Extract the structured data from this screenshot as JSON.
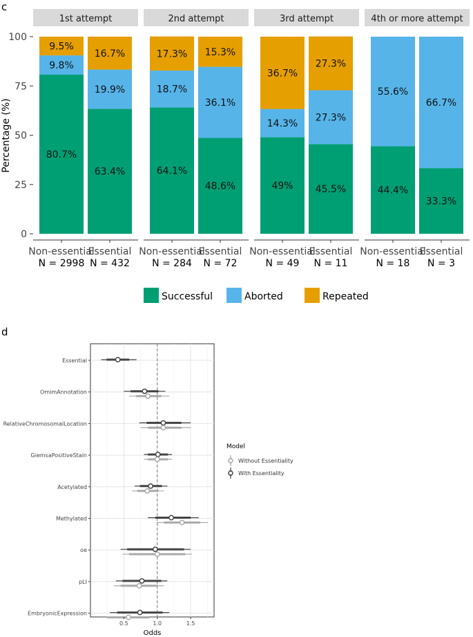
{
  "chart_data": [
    {
      "panel": "c",
      "type": "bar",
      "stacked": true,
      "ylabel": "Percentage (%)",
      "yticks": [
        0,
        25,
        50,
        75,
        100
      ],
      "ylim": [
        0,
        100
      ],
      "facets": [
        {
          "title": "1st attempt",
          "bars": [
            {
              "name": "Non-essential",
              "n": "N = 2998",
              "successful": 80.7,
              "aborted": 9.8,
              "repeated": 9.5,
              "labels": [
                "80.7%",
                "9.8%",
                "9.5%"
              ]
            },
            {
              "name": "Essential",
              "n": "N = 432",
              "successful": 63.4,
              "aborted": 19.9,
              "repeated": 16.7,
              "labels": [
                "63.4%",
                "19.9%",
                "16.7%"
              ]
            }
          ]
        },
        {
          "title": "2nd attempt",
          "bars": [
            {
              "name": "Non-essential",
              "n": "N = 284",
              "successful": 64.1,
              "aborted": 18.7,
              "repeated": 17.3,
              "labels": [
                "64.1%",
                "18.7%",
                "17.3%"
              ]
            },
            {
              "name": "Essential",
              "n": "N = 72",
              "successful": 48.6,
              "aborted": 36.1,
              "repeated": 15.3,
              "labels": [
                "48.6%",
                "36.1%",
                "15.3%"
              ]
            }
          ]
        },
        {
          "title": "3rd attempt",
          "bars": [
            {
              "name": "Non-essential",
              "n": "N = 49",
              "successful": 49,
              "aborted": 14.3,
              "repeated": 36.7,
              "labels": [
                "49%",
                "14.3%",
                "36.7%"
              ]
            },
            {
              "name": "Essential",
              "n": "N = 11",
              "successful": 45.5,
              "aborted": 27.3,
              "repeated": 27.3,
              "labels": [
                "45.5%",
                "27.3%",
                "27.3%"
              ]
            }
          ]
        },
        {
          "title": "4th or more attempt",
          "bars": [
            {
              "name": "Non-essential",
              "n": "N = 18",
              "successful": 44.4,
              "aborted": 55.6,
              "repeated": 0,
              "labels": [
                "44.4%",
                "55.6%",
                ""
              ]
            },
            {
              "name": "Essential",
              "n": "N = 3",
              "successful": 33.3,
              "aborted": 66.7,
              "repeated": 0,
              "labels": [
                "33.3%",
                "66.7%",
                ""
              ]
            }
          ]
        }
      ],
      "legend": [
        {
          "label": "Successful",
          "color": "#009E73"
        },
        {
          "label": "Aborted",
          "color": "#56B4E9"
        },
        {
          "label": "Repeated",
          "color": "#E69F00"
        }
      ]
    },
    {
      "panel": "d",
      "type": "scatter",
      "subtype": "forest",
      "xlabel": "Odds",
      "xticks": [
        0.5,
        1.0,
        1.5
      ],
      "xtick_labels": [
        "0.5",
        "1.0",
        "1.5"
      ],
      "xlim": [
        0.0,
        1.85
      ],
      "reference_line": 1.0,
      "legend_title": "Model",
      "models": [
        {
          "label": "Without Essentiality",
          "color": "#AAAAAA"
        },
        {
          "label": "With Essentiality",
          "color": "#444444"
        }
      ],
      "variables": [
        {
          "name": "Essential",
          "with": {
            "est": 0.41,
            "lo95": 0.16,
            "hi95": 0.69,
            "lo80": 0.24,
            "hi80": 0.58
          },
          "without": null
        },
        {
          "name": "OmimAnnotation",
          "with": {
            "est": 0.81,
            "lo95": 0.5,
            "hi95": 1.12,
            "lo80": 0.6,
            "hi80": 1.02
          },
          "without": {
            "est": 0.86,
            "lo95": 0.58,
            "hi95": 1.18,
            "lo80": 0.68,
            "hi80": 1.06
          }
        },
        {
          "name": "RelativeChromosomalLocation",
          "with": {
            "est": 1.09,
            "lo95": 0.73,
            "hi95": 1.5,
            "lo80": 0.84,
            "hi80": 1.36
          },
          "without": {
            "est": 1.09,
            "lo95": 0.75,
            "hi95": 1.5,
            "lo80": 0.86,
            "hi80": 1.36
          }
        },
        {
          "name": "GiemsaPositiveStain",
          "with": {
            "est": 1.01,
            "lo95": 0.8,
            "hi95": 1.22,
            "lo80": 0.86,
            "hi80": 1.16
          },
          "without": {
            "est": 1.0,
            "lo95": 0.8,
            "hi95": 1.22,
            "lo80": 0.86,
            "hi80": 1.16
          }
        },
        {
          "name": "Acetylated",
          "with": {
            "est": 0.9,
            "lo95": 0.66,
            "hi95": 1.15,
            "lo80": 0.74,
            "hi80": 1.07
          },
          "without": {
            "est": 0.85,
            "lo95": 0.62,
            "hi95": 1.1,
            "lo80": 0.7,
            "hi80": 1.02
          }
        },
        {
          "name": "Methylated",
          "with": {
            "est": 1.21,
            "lo95": 0.86,
            "hi95": 1.62,
            "lo80": 0.97,
            "hi80": 1.5
          },
          "without": {
            "est": 1.37,
            "lo95": 0.99,
            "hi95": 1.76,
            "lo80": 1.1,
            "hi80": 1.64
          }
        },
        {
          "name": "oe",
          "with": {
            "est": 0.97,
            "lo95": 0.45,
            "hi95": 1.5,
            "lo80": 0.55,
            "hi80": 1.4
          },
          "without": {
            "est": 1.0,
            "lo95": 0.48,
            "hi95": 1.52,
            "lo80": 0.58,
            "hi80": 1.42
          }
        },
        {
          "name": "pLI",
          "with": {
            "est": 0.77,
            "lo95": 0.38,
            "hi95": 1.15,
            "lo80": 0.48,
            "hi80": 1.06
          },
          "without": {
            "est": 0.73,
            "lo95": 0.35,
            "hi95": 1.1,
            "lo80": 0.45,
            "hi80": 1.01
          }
        },
        {
          "name": "EmbryonicExpression",
          "with": {
            "est": 0.74,
            "lo95": 0.29,
            "hi95": 1.18,
            "lo80": 0.4,
            "hi80": 1.08
          },
          "without": {
            "est": 0.57,
            "lo95": 0.14,
            "hi95": 0.98,
            "lo80": 0.25,
            "hi80": 0.88
          }
        }
      ]
    }
  ],
  "panel_labels": {
    "c": "c",
    "d": "d"
  }
}
